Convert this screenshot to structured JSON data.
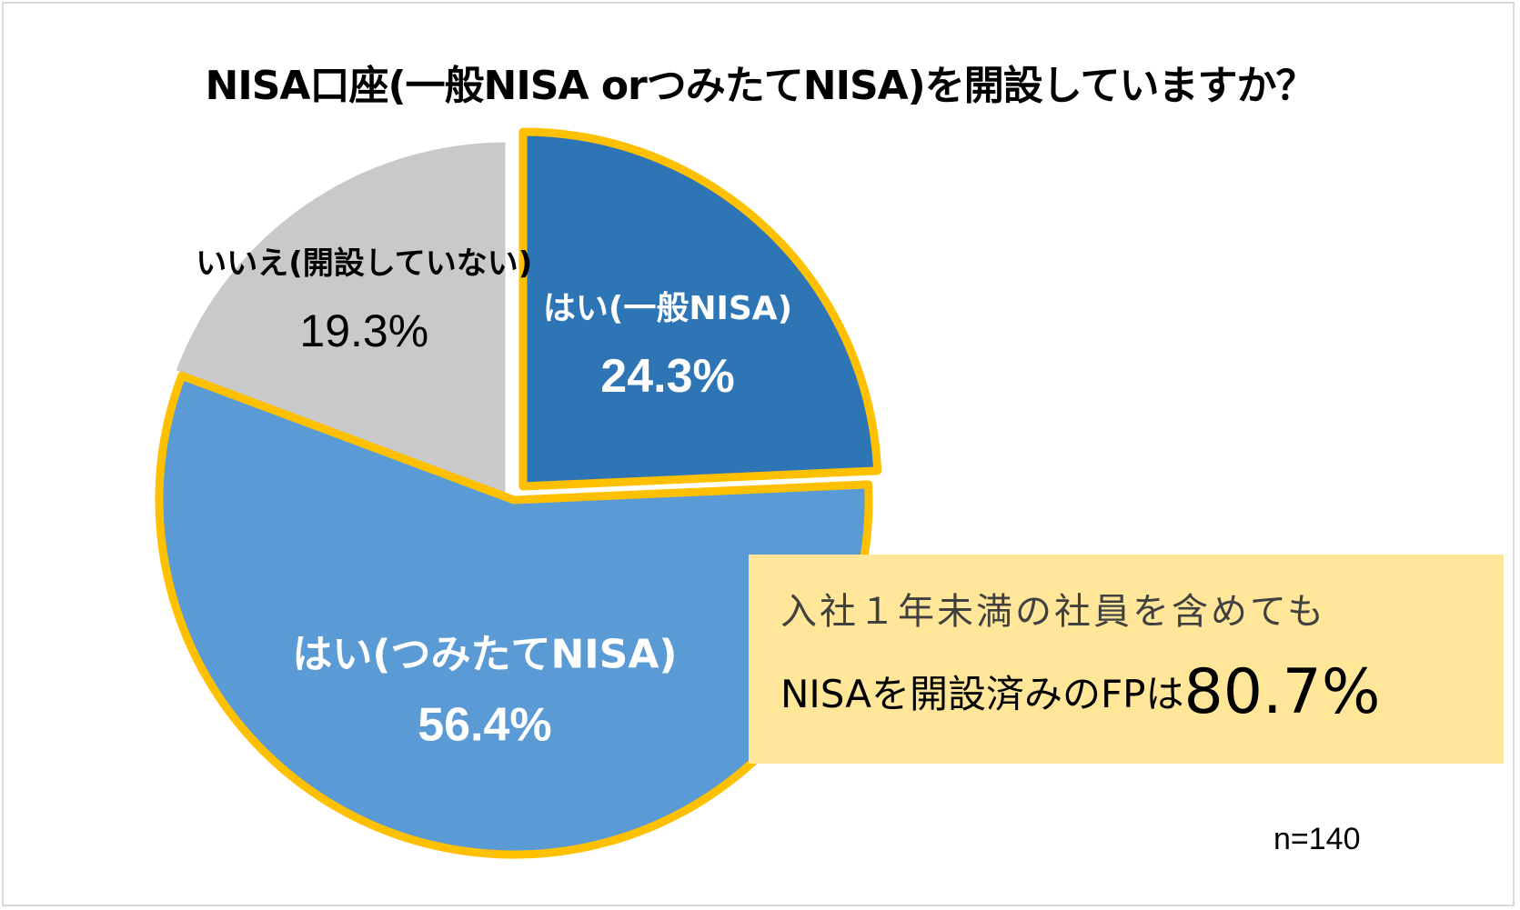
{
  "title": "NISA口座(一般NISA orつみたてNISA)を開設していますか？",
  "chart_data": {
    "type": "pie",
    "title": "NISA口座(一般NISA orつみたてNISA)を開設していますか？",
    "slices": [
      {
        "label": "はい(一般NISA)",
        "value": 24.3,
        "display": "24.3%",
        "color": "#2e75b6",
        "highlighted": true
      },
      {
        "label": "はい(つみたてNISA)",
        "value": 56.4,
        "display": "56.4%",
        "color": "#5b9bd5",
        "highlighted": true
      },
      {
        "label": "いいえ(開設していない)",
        "value": 19.3,
        "display": "19.3%",
        "color": "#c9c9c9",
        "highlighted": false
      }
    ],
    "highlight_color": "#ffc000",
    "start": "12 o'clock",
    "direction": "clockwise"
  },
  "callout": {
    "line1": "入社１年未満の社員を含めても",
    "line2_prefix": "NISAを開設済みのFPは",
    "line2_value": "80.7%"
  },
  "sample_note": "n=140"
}
